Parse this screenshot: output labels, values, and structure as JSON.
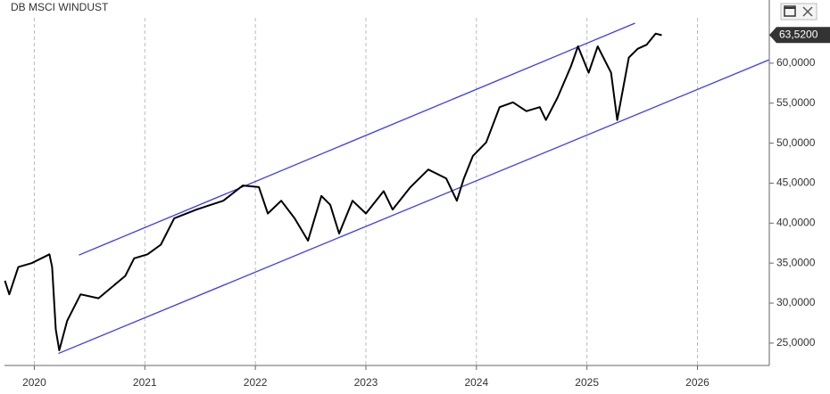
{
  "chart_data": {
    "type": "line",
    "title": "DB MSCI WINDUST",
    "series": [
      {
        "color": "#000000",
        "x": [
          2019.734,
          2019.774,
          2019.855,
          2019.976,
          2020.137,
          2020.161,
          2020.194,
          2020.226,
          2020.298,
          2020.419,
          2020.581,
          2020.823,
          2020.903,
          2021.024,
          2021.145,
          2021.266,
          2021.468,
          2021.71,
          2021.887,
          2022.032,
          2022.113,
          2022.234,
          2022.355,
          2022.476,
          2022.597,
          2022.677,
          2022.758,
          2022.879,
          2023.0,
          2023.161,
          2023.242,
          2023.403,
          2023.565,
          2023.726,
          2023.823,
          2023.887,
          2023.968,
          2024.089,
          2024.21,
          2024.331,
          2024.452,
          2024.573,
          2024.629,
          2024.734,
          2024.855,
          2024.919,
          2025.016,
          2025.097,
          2025.218,
          2025.274,
          2025.379,
          2025.46,
          2025.54,
          2025.621,
          2025.677
        ],
        "values": [
          32.8,
          31.1,
          34.5,
          35.0,
          36.1,
          34.5,
          26.7,
          24.1,
          27.8,
          31.1,
          30.6,
          33.4,
          35.6,
          36.1,
          37.3,
          40.6,
          41.7,
          42.8,
          44.7,
          44.5,
          41.2,
          42.8,
          40.6,
          37.8,
          43.4,
          42.3,
          38.7,
          42.8,
          41.2,
          44.0,
          41.7,
          44.5,
          46.7,
          45.6,
          42.8,
          45.6,
          48.4,
          50.1,
          54.5,
          55.1,
          54.0,
          54.5,
          52.9,
          55.7,
          59.6,
          62.1,
          58.8,
          62.1,
          58.8,
          52.9,
          60.7,
          61.8,
          62.3,
          63.7,
          63.5
        ]
      }
    ],
    "trendlines": [
      {
        "color": "#3c3cf0",
        "x": [
          2020.403,
          2025.435
        ],
        "y": [
          36.0,
          65.0
        ]
      },
      {
        "color": "#3c3cf0",
        "x": [
          2020.218,
          2026.645
        ],
        "y": [
          23.7,
          60.4
        ]
      }
    ],
    "last_value": {
      "value": 63.52,
      "label": "63,5200"
    },
    "xlim": [
      2019.73,
      2026.65
    ],
    "xticks": [
      2020,
      2021,
      2022,
      2023,
      2024,
      2025,
      2026
    ],
    "ylim": [
      22.2,
      67.9
    ],
    "yticks": [
      {
        "value": 25,
        "label": "25,0000"
      },
      {
        "value": 30,
        "label": "30,0000"
      },
      {
        "value": 35,
        "label": "35,0000"
      },
      {
        "value": 40,
        "label": "40,0000"
      },
      {
        "value": 45,
        "label": "45,0000"
      },
      {
        "value": 50,
        "label": "50,0000"
      },
      {
        "value": 55,
        "label": "55,0000"
      },
      {
        "value": 60,
        "label": "60,0000"
      }
    ],
    "grid": true
  }
}
